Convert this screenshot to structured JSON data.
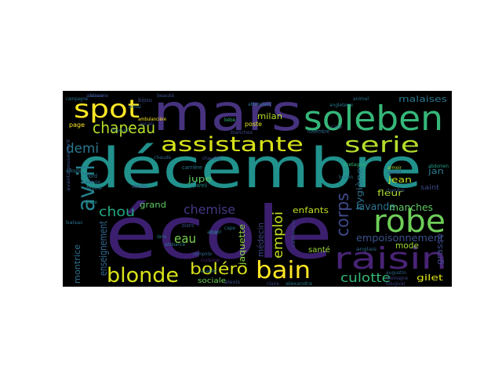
{
  "cloud": {
    "background": "#000000",
    "palette": [
      "#440154",
      "#3b528b",
      "#21918c",
      "#5ec962",
      "#fde725"
    ],
    "words": [
      {
        "text": "décembre",
        "color": "#21918c"
      },
      {
        "text": "école",
        "color": "#3b1f6e"
      },
      {
        "text": "mars",
        "color": "#46327e"
      },
      {
        "text": "soleben",
        "color": "#35b779"
      },
      {
        "text": "spot",
        "color": "#fde725"
      },
      {
        "text": "robe",
        "color": "#6ece58"
      },
      {
        "text": "raisin",
        "color": "#482475"
      },
      {
        "text": "assistante",
        "color": "#d8e219"
      },
      {
        "text": "serie",
        "color": "#b5de2b"
      },
      {
        "text": "avril",
        "color": "#26828e"
      },
      {
        "text": "blonde",
        "color": "#d8e219"
      },
      {
        "text": "bain",
        "color": "#fde725"
      },
      {
        "text": "chapeau",
        "color": "#b5de2b"
      },
      {
        "text": "boléro",
        "color": "#d8e219"
      },
      {
        "text": "corps",
        "color": "#3e4989"
      },
      {
        "text": "demi",
        "color": "#2a788e"
      },
      {
        "text": "chou",
        "color": "#22a884"
      },
      {
        "text": "emploi",
        "color": "#c8e020"
      },
      {
        "text": "chemise",
        "color": "#443983"
      },
      {
        "text": "culotte",
        "color": "#35b779"
      },
      {
        "text": "eau",
        "color": "#7ad151"
      },
      {
        "text": "enseignement",
        "color": "#31688e"
      },
      {
        "text": "lavande",
        "color": "#2c728e"
      },
      {
        "text": "empoisonnement",
        "color": "#3b528b"
      },
      {
        "text": "manches",
        "color": "#5ec962"
      },
      {
        "text": "malaises",
        "color": "#2a788e"
      },
      {
        "text": "milan",
        "color": "#b5de2b"
      },
      {
        "text": "gilet",
        "color": "#dde318"
      },
      {
        "text": "jupe",
        "color": "#5ec962"
      },
      {
        "text": "jean",
        "color": "#c2df23"
      },
      {
        "text": "hygiène",
        "color": "#2c728e"
      },
      {
        "text": "fleur",
        "color": "#aadc32"
      },
      {
        "text": "mode",
        "color": "#9fda3a"
      },
      {
        "text": "grasse",
        "color": "#3e4989"
      },
      {
        "text": "grand",
        "color": "#5ec962"
      },
      {
        "text": "montrice",
        "color": "#2c728e"
      },
      {
        "text": "médecin",
        "color": "#414487"
      },
      {
        "text": "jaquette",
        "color": "#90d743"
      },
      {
        "text": "enfants",
        "color": "#c2df23"
      },
      {
        "text": "santé",
        "color": "#a0da39"
      },
      {
        "text": "jan",
        "color": "#2a788e"
      },
      {
        "text": "saint",
        "color": "#3e4989"
      },
      {
        "text": "sociale",
        "color": "#6ece58"
      },
      {
        "text": "bijou",
        "color": "#3e4989"
      },
      {
        "text": "page",
        "color": "#fde725"
      },
      {
        "text": "poste",
        "color": "#e2e418"
      },
      {
        "text": "blanc",
        "color": "#3b528b"
      },
      {
        "text": "abdomen",
        "color": "#1fa188"
      },
      {
        "text": "angleterre",
        "color": "#2a788e"
      },
      {
        "text": "armoir",
        "color": "#a8db34"
      },
      {
        "text": "bord",
        "color": "#2c728e"
      },
      {
        "text": "augustin",
        "color": "#31688e"
      },
      {
        "text": "allemagne",
        "color": "#3e4989"
      },
      {
        "text": "bougival",
        "color": "#414487"
      },
      {
        "text": "alexis",
        "color": "#3b528b"
      },
      {
        "text": "novembre",
        "color": "#2c728e"
      },
      {
        "text": "café",
        "color": "#31688e"
      },
      {
        "text": "carrière",
        "color": "#2a788e"
      },
      {
        "text": "appareil",
        "color": "#21918c"
      },
      {
        "text": "bébé",
        "color": "#35b779"
      },
      {
        "text": "cape",
        "color": "#2c728e"
      },
      {
        "text": "chambre",
        "color": "#3b528b"
      },
      {
        "text": "blanches",
        "color": "#3e4989"
      },
      {
        "text": "attendant",
        "color": "#2c728e"
      },
      {
        "text": "ambulancière",
        "color": "#fde725"
      },
      {
        "text": "alsace",
        "color": "#3b528b"
      },
      {
        "text": "blouse",
        "color": "#31688e"
      },
      {
        "text": "feuille",
        "color": "#2a788e"
      },
      {
        "text": "bose",
        "color": "#21918c"
      },
      {
        "text": "beauté",
        "color": "#3b528b"
      },
      {
        "text": "animal",
        "color": "#2c728e"
      },
      {
        "text": "catherine",
        "color": "#3e4989"
      },
      {
        "text": "cuisine",
        "color": "#482878"
      },
      {
        "text": "alexandra",
        "color": "#2a788e"
      },
      {
        "text": "anglais",
        "color": "#31688e"
      },
      {
        "text": "avantageusement",
        "color": "#3b528b"
      },
      {
        "text": "balsac",
        "color": "#2c728e"
      },
      {
        "text": "chauds",
        "color": "#31688e"
      },
      {
        "text": "arable",
        "color": "#2a788e"
      },
      {
        "text": "bretagne",
        "color": "#35b779"
      },
      {
        "text": "armor",
        "color": "#3e4989"
      },
      {
        "text": "campagne",
        "color": "#2c728e"
      },
      {
        "text": "compote",
        "color": "#31688e"
      },
      {
        "text": "adopte",
        "color": "#2a788e"
      },
      {
        "text": "alsavie",
        "color": "#3b528b"
      },
      {
        "text": "ainsi",
        "color": "#2c728e"
      },
      {
        "text": "aicali",
        "color": "#3e4989"
      },
      {
        "text": "biscuit",
        "color": "#31688e"
      },
      {
        "text": "ambiance",
        "color": "#2a788e"
      },
      {
        "text": "abeille",
        "color": "#3b528b"
      },
      {
        "text": "alcool",
        "color": "#2c728e"
      },
      {
        "text": "chat",
        "color": "#31688e"
      },
      {
        "text": "claire",
        "color": "#3e4989"
      },
      {
        "text": "dame",
        "color": "#2a788e"
      },
      {
        "text": "chaudes",
        "color": "#3b528b"
      },
      {
        "text": "breton",
        "color": "#2c728e"
      }
    ]
  }
}
